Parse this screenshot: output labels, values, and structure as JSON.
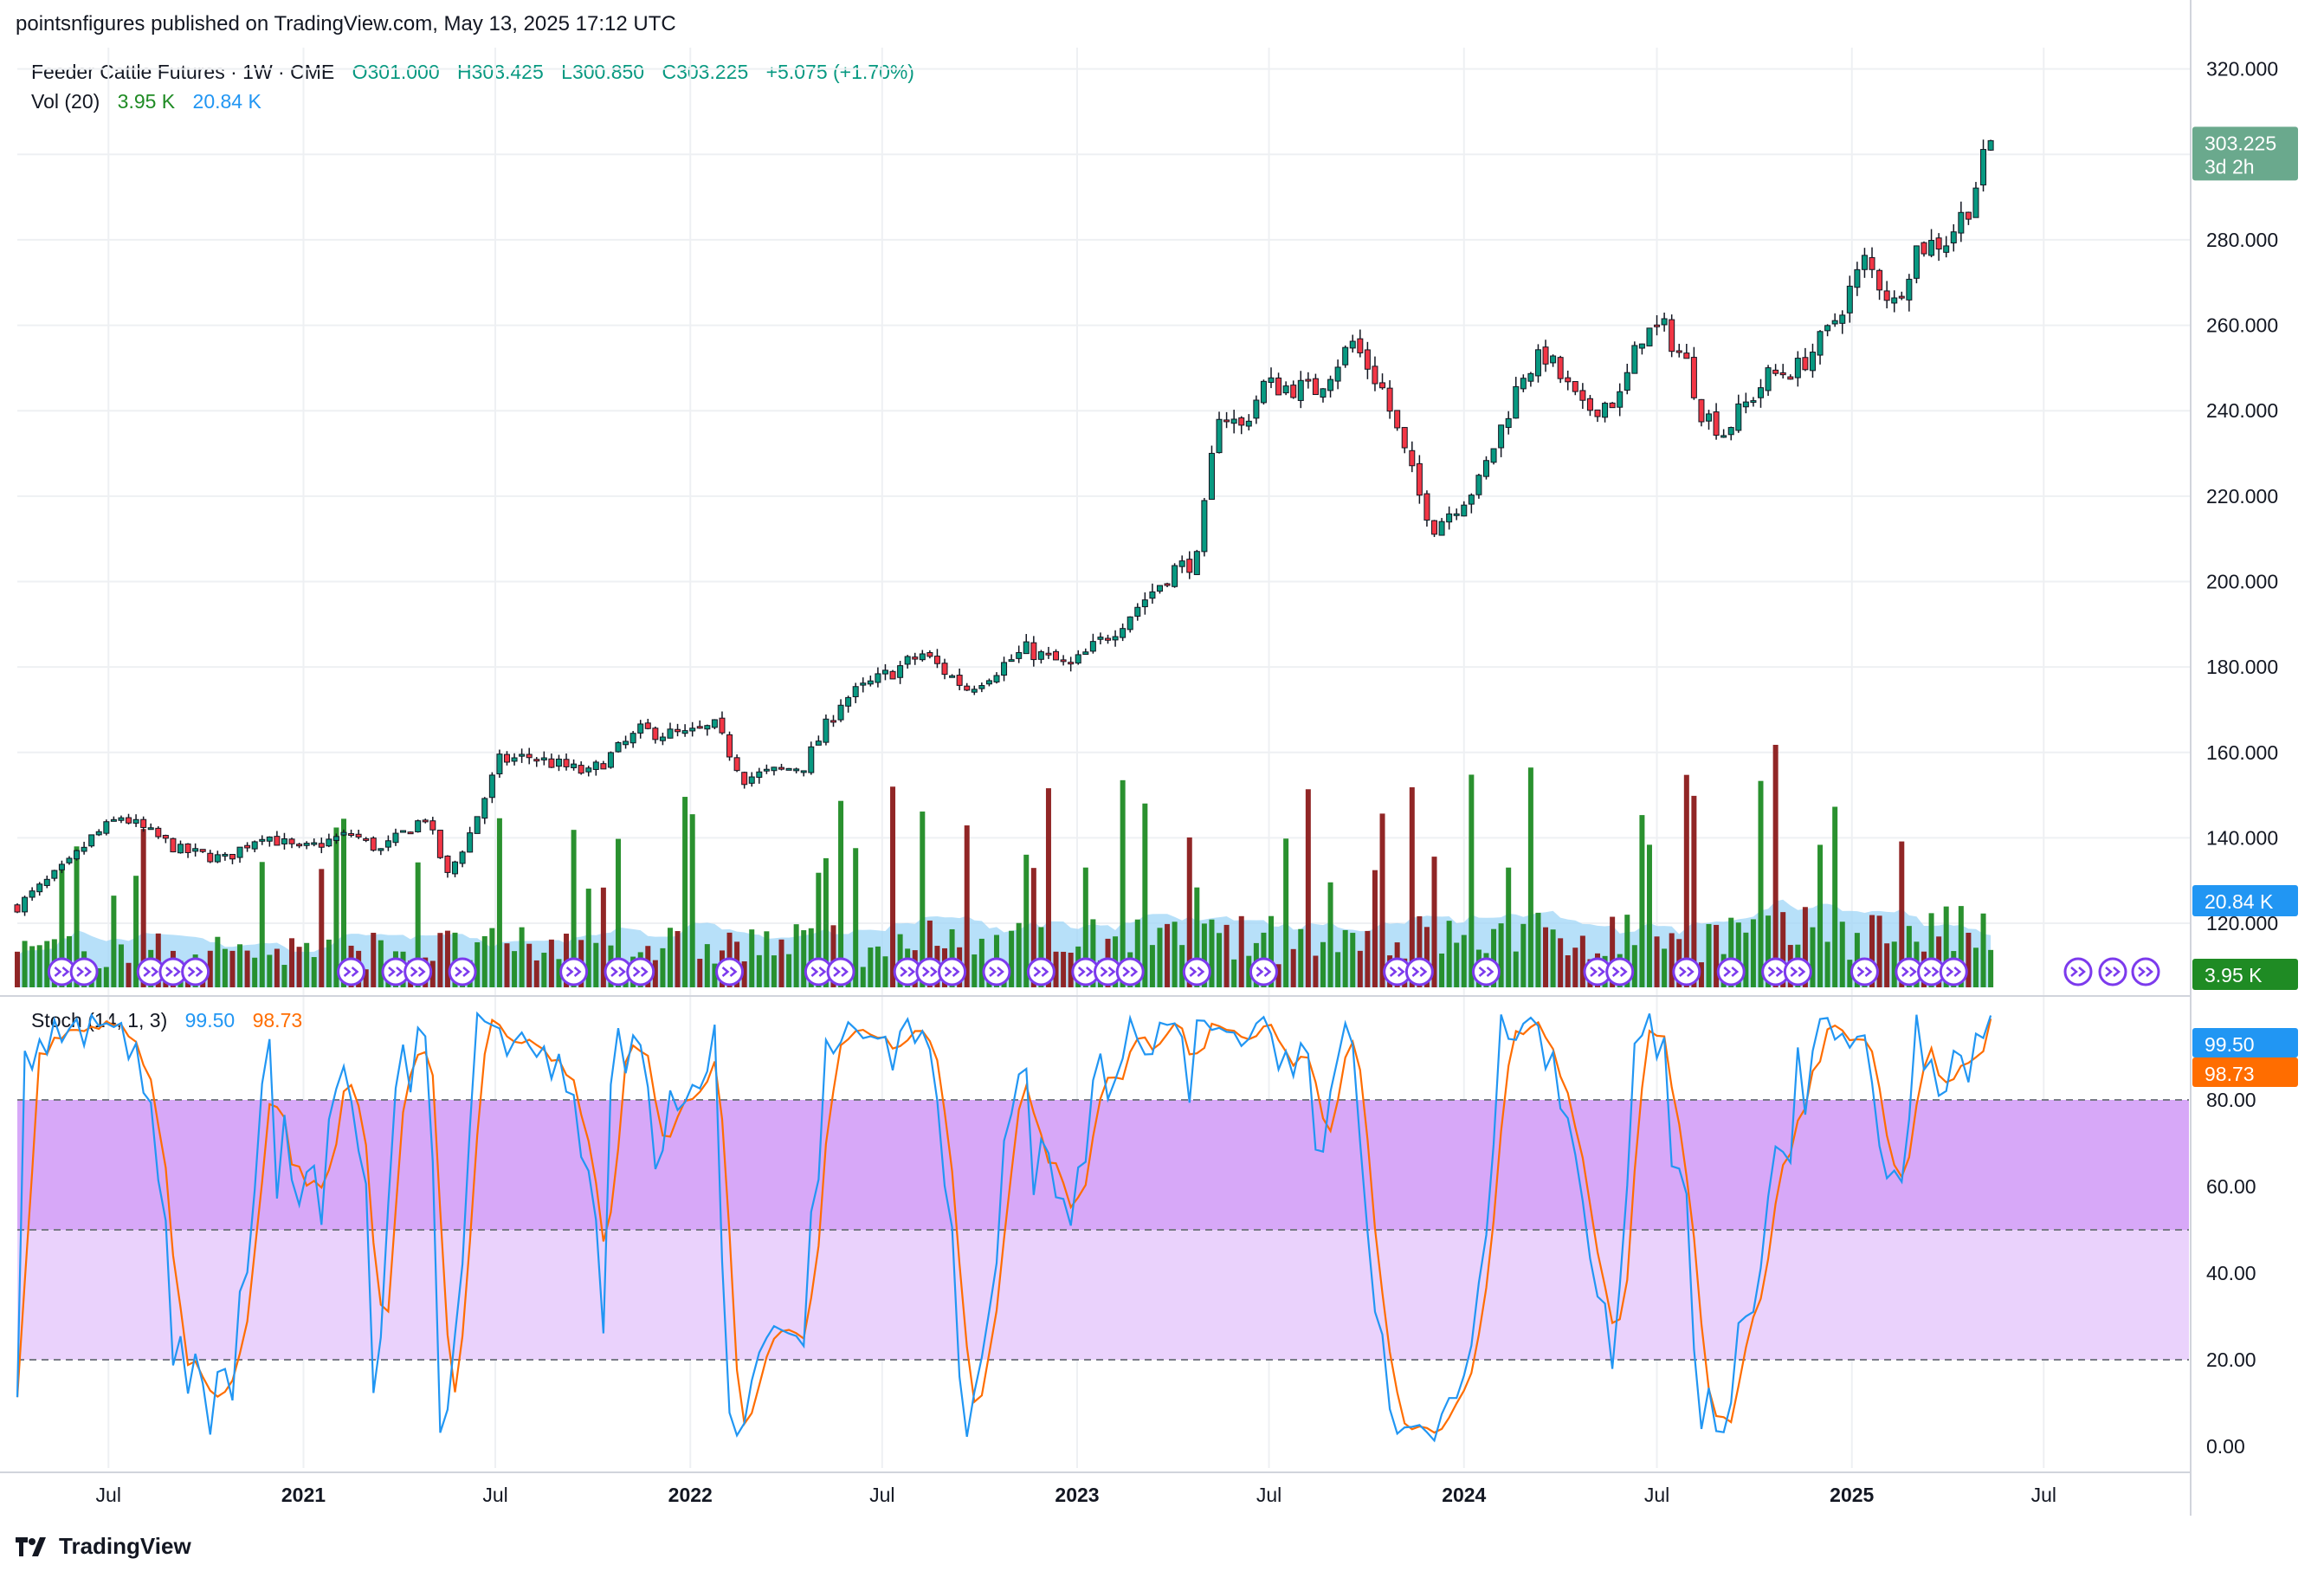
{
  "header": {
    "published": "pointsnfigures published on TradingView.com, May 13, 2025 17:12 UTC"
  },
  "legend": {
    "symbol": "Feeder Cattle Futures · 1W · CME",
    "open": "O301.000",
    "high": "H303.425",
    "low": "L300.850",
    "close": "C303.225",
    "change": "+5.075 (+1.70%)",
    "vol_label": "Vol (20)",
    "vol_value": "3.95 K",
    "vol_ma": "20.84 K",
    "stoch_label": "Stoch (14, 1, 3)",
    "stoch_k": "99.50",
    "stoch_d": "98.73"
  },
  "badges": {
    "price": "303.225",
    "countdown": "3d 2h",
    "vol_ma": "20.84 K",
    "vol": "3.95 K",
    "stoch_k": "99.50",
    "stoch_d": "98.73"
  },
  "colors": {
    "up": "#089981",
    "down": "#f23645",
    "vol_up": "#1f8b24",
    "vol_down": "#8b1a1a",
    "vol_ma_fill": "#9fd5f7",
    "stoch_k": "#2196f3",
    "stoch_d": "#ff6d00",
    "stoch_band_upper": "#d7a8f8",
    "stoch_band_lower": "#ead2fc",
    "event_icon": "#7c3aed"
  },
  "footer": {
    "brand": "TradingView"
  },
  "chart_data": [
    {
      "type": "candlestick",
      "title": "Feeder Cattle Futures · 1W · CME",
      "ylim": [
        105,
        325
      ],
      "y_ticks": [
        "320.000",
        "280.000",
        "260.000",
        "240.000",
        "220.000",
        "200.000",
        "180.000",
        "160.000",
        "140.000",
        "120.000"
      ],
      "x_ticks": [
        {
          "label": "Jul",
          "date": "2020-07-01",
          "bold": false
        },
        {
          "label": "2021",
          "date": "2021-01-01",
          "bold": true
        },
        {
          "label": "Jul",
          "date": "2021-07-01",
          "bold": false
        },
        {
          "label": "2022",
          "date": "2022-01-01",
          "bold": true
        },
        {
          "label": "Jul",
          "date": "2022-07-01",
          "bold": false
        },
        {
          "label": "2023",
          "date": "2023-01-01",
          "bold": true
        },
        {
          "label": "Jul",
          "date": "2023-07-01",
          "bold": false
        },
        {
          "label": "2024",
          "date": "2024-01-01",
          "bold": true
        },
        {
          "label": "Jul",
          "date": "2024-07-01",
          "bold": false
        },
        {
          "label": "2025",
          "date": "2025-01-01",
          "bold": true
        },
        {
          "label": "Jul",
          "date": "2025-07-01",
          "bold": false
        }
      ],
      "x_range": [
        "2020-04-06",
        "2025-11-15"
      ],
      "last": {
        "date": "2025-05-12",
        "open": 301.0,
        "high": 303.425,
        "low": 300.85,
        "close": 303.225
      },
      "close_anchors": [
        {
          "date": "2020-04-06",
          "close": 124
        },
        {
          "date": "2020-05-25",
          "close": 134
        },
        {
          "date": "2020-06-15",
          "close": 140
        },
        {
          "date": "2020-07-13",
          "close": 145
        },
        {
          "date": "2020-09-07",
          "close": 137
        },
        {
          "date": "2020-10-19",
          "close": 135
        },
        {
          "date": "2020-11-23",
          "close": 141
        },
        {
          "date": "2020-12-28",
          "close": 137
        },
        {
          "date": "2021-02-15",
          "close": 141
        },
        {
          "date": "2021-03-15",
          "close": 137
        },
        {
          "date": "2021-04-26",
          "close": 145
        },
        {
          "date": "2021-05-17",
          "close": 131
        },
        {
          "date": "2021-06-07",
          "close": 141
        },
        {
          "date": "2021-07-05",
          "close": 158
        },
        {
          "date": "2021-08-02",
          "close": 159
        },
        {
          "date": "2021-09-27",
          "close": 155
        },
        {
          "date": "2021-11-15",
          "close": 165
        },
        {
          "date": "2021-12-27",
          "close": 164
        },
        {
          "date": "2022-01-24",
          "close": 166
        },
        {
          "date": "2022-02-21",
          "close": 154
        },
        {
          "date": "2022-04-18",
          "close": 157
        },
        {
          "date": "2022-05-23",
          "close": 172
        },
        {
          "date": "2022-06-20",
          "close": 176
        },
        {
          "date": "2022-08-08",
          "close": 183
        },
        {
          "date": "2022-09-19",
          "close": 175
        },
        {
          "date": "2022-11-14",
          "close": 184
        },
        {
          "date": "2022-12-26",
          "close": 180
        },
        {
          "date": "2023-02-06",
          "close": 189
        },
        {
          "date": "2023-04-03",
          "close": 203
        },
        {
          "date": "2023-04-24",
          "close": 205
        },
        {
          "date": "2023-05-15",
          "close": 240
        },
        {
          "date": "2023-06-05",
          "close": 236
        },
        {
          "date": "2023-06-26",
          "close": 246
        },
        {
          "date": "2023-08-14",
          "close": 245
        },
        {
          "date": "2023-09-18",
          "close": 256
        },
        {
          "date": "2023-10-16",
          "close": 245
        },
        {
          "date": "2023-11-20",
          "close": 220
        },
        {
          "date": "2023-12-04",
          "close": 213
        },
        {
          "date": "2024-01-15",
          "close": 223
        },
        {
          "date": "2024-02-26",
          "close": 249
        },
        {
          "date": "2024-03-18",
          "close": 253
        },
        {
          "date": "2024-04-22",
          "close": 240
        },
        {
          "date": "2024-05-27",
          "close": 243
        },
        {
          "date": "2024-06-17",
          "close": 258
        },
        {
          "date": "2024-07-08",
          "close": 259
        },
        {
          "date": "2024-07-29",
          "close": 251
        },
        {
          "date": "2024-08-12",
          "close": 240
        },
        {
          "date": "2024-09-02",
          "close": 235
        },
        {
          "date": "2024-10-14",
          "close": 248
        },
        {
          "date": "2024-11-11",
          "close": 250
        },
        {
          "date": "2024-12-09",
          "close": 258
        },
        {
          "date": "2025-01-13",
          "close": 275
        },
        {
          "date": "2025-02-10",
          "close": 265
        },
        {
          "date": "2025-03-03",
          "close": 278
        },
        {
          "date": "2025-03-31",
          "close": 280
        },
        {
          "date": "2025-04-21",
          "close": 288
        },
        {
          "date": "2025-05-12",
          "close": 303.225
        }
      ]
    },
    {
      "type": "bar",
      "title": "Vol (20)",
      "series": [
        {
          "name": "Vol",
          "last": "3.95 K"
        },
        {
          "name": "Volume MA",
          "last": "20.84 K"
        }
      ]
    },
    {
      "type": "line",
      "title": "Stoch (14, 1, 3)",
      "ylim": [
        -5,
        100
      ],
      "y_ticks": [
        "80.00",
        "60.00",
        "40.00",
        "20.00",
        "0.00"
      ],
      "bands": {
        "upper": 80,
        "middle": 50,
        "lower": 20
      },
      "series": [
        {
          "name": "%K",
          "last": 99.5
        },
        {
          "name": "%D",
          "last": 98.73
        }
      ]
    }
  ]
}
